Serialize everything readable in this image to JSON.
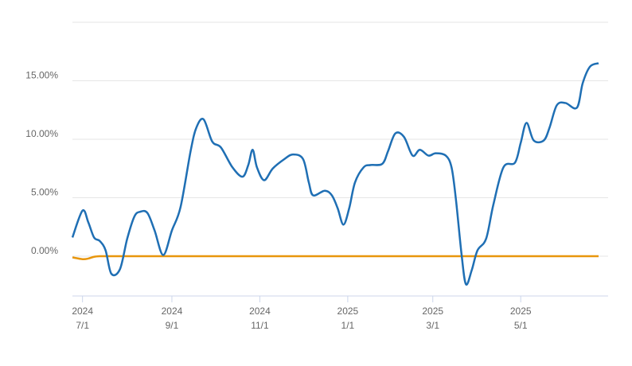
{
  "chart_data": {
    "type": "line",
    "x": [
      "2024-06-24",
      "2024-07-01",
      "2024-07-05",
      "2024-07-09",
      "2024-07-13",
      "2024-07-17",
      "2024-07-21",
      "2024-07-27",
      "2024-08-01",
      "2024-08-06",
      "2024-08-10",
      "2024-08-15",
      "2024-08-20",
      "2024-08-26",
      "2024-09-01",
      "2024-09-07",
      "2024-09-14",
      "2024-09-18",
      "2024-09-23",
      "2024-09-29",
      "2024-10-05",
      "2024-10-13",
      "2024-10-20",
      "2024-10-24",
      "2024-10-27",
      "2024-10-30",
      "2024-11-04",
      "2024-11-10",
      "2024-11-18",
      "2024-11-24",
      "2024-12-01",
      "2024-12-05",
      "2024-12-08",
      "2024-12-16",
      "2024-12-21",
      "2024-12-25",
      "2024-12-29",
      "2025-01-02",
      "2025-01-06",
      "2025-01-12",
      "2025-01-17",
      "2025-01-25",
      "2025-01-29",
      "2025-02-03",
      "2025-02-09",
      "2025-02-15",
      "2025-02-20",
      "2025-02-26",
      "2025-03-03",
      "2025-03-10",
      "2025-03-14",
      "2025-03-17",
      "2025-03-21",
      "2025-03-24",
      "2025-03-28",
      "2025-04-01",
      "2025-04-07",
      "2025-04-12",
      "2025-04-19",
      "2025-04-27",
      "2025-05-01",
      "2025-05-05",
      "2025-05-10",
      "2025-05-17",
      "2025-05-21",
      "2025-05-26",
      "2025-06-01",
      "2025-06-09",
      "2025-06-13",
      "2025-06-18",
      "2025-06-24"
    ],
    "series": [
      {
        "color": "#1f6fb4",
        "values": [
          1.6,
          3.9,
          2.9,
          1.6,
          1.3,
          0.5,
          -1.5,
          -1.1,
          1.5,
          3.4,
          3.8,
          3.7,
          2.2,
          0.1,
          2.2,
          4.2,
          9.0,
          11.0,
          11.7,
          9.8,
          9.3,
          7.6,
          6.8,
          7.8,
          9.1,
          7.6,
          6.5,
          7.5,
          8.3,
          8.7,
          8.3,
          6.3,
          5.2,
          5.6,
          5.2,
          4.1,
          2.7,
          4.1,
          6.3,
          7.6,
          7.8,
          7.9,
          9.0,
          10.5,
          10.2,
          8.6,
          9.1,
          8.6,
          8.8,
          8.6,
          7.6,
          4.9,
          0.1,
          -2.4,
          -1.2,
          0.5,
          1.5,
          4.4,
          7.6,
          8.0,
          9.7,
          11.4,
          9.9,
          9.9,
          11.0,
          12.9,
          13.1,
          12.7,
          14.8,
          16.2,
          16.5
        ]
      },
      {
        "color": "#e8960c",
        "values": [
          -0.1,
          -0.25,
          -0.2,
          -0.05,
          0,
          0,
          0,
          0,
          0,
          0,
          0,
          0,
          0,
          0,
          0,
          0,
          0,
          0,
          0,
          0,
          0,
          0,
          0,
          0,
          0,
          0,
          0,
          0,
          0,
          0,
          0,
          0,
          0,
          0,
          0,
          0,
          0,
          0,
          0,
          0,
          0,
          0,
          0,
          0,
          0,
          0,
          0,
          0,
          0,
          0,
          0,
          0,
          0,
          0,
          0,
          0,
          0,
          0,
          0,
          0,
          0,
          0,
          0,
          0,
          0,
          0,
          0,
          0,
          0,
          0,
          0
        ]
      }
    ],
    "xlim": [
      "2024-06-24",
      "2025-06-24"
    ],
    "xticks": [
      {
        "value": "2024-07-01",
        "label": [
          "2024",
          "7/1"
        ]
      },
      {
        "value": "2024-09-01",
        "label": [
          "2024",
          "9/1"
        ]
      },
      {
        "value": "2024-11-01",
        "label": [
          "2024",
          "11/1"
        ]
      },
      {
        "value": "2025-01-01",
        "label": [
          "2025",
          "1/1"
        ]
      },
      {
        "value": "2025-03-01",
        "label": [
          "2025",
          "3/1"
        ]
      },
      {
        "value": "2025-05-01",
        "label": [
          "2025",
          "5/1"
        ]
      }
    ],
    "ylim": [
      -3.4,
      20
    ],
    "yticks": [
      {
        "value": 0,
        "label": "0.00%"
      },
      {
        "value": 5,
        "label": "5.00%"
      },
      {
        "value": 10,
        "label": "10.00%"
      },
      {
        "value": 15,
        "label": "15.00%"
      }
    ],
    "grid": true
  }
}
